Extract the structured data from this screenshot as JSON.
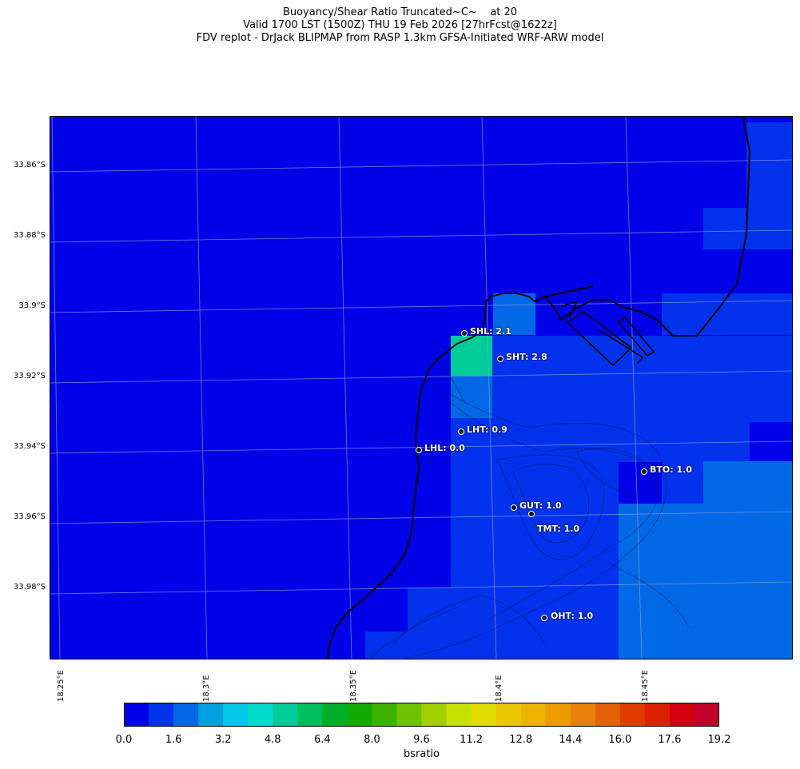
{
  "title": {
    "line1": "Buoyancy/Shear Ratio Truncated~C~    at 20",
    "line2": "Valid 1700 LST (1500Z) THU 19 Feb 2026 [27hrFcst@1622z]",
    "line3": "FDV replot - DrJack BLIPMAP from RASP 1.3km GFSA-Initiated WRF-ARW model"
  },
  "map": {
    "lat_labels": [
      "33.86°S",
      "33.88°S",
      "33.9°S",
      "33.92°S",
      "33.94°S",
      "33.96°S",
      "33.98°S"
    ],
    "lon_labels": [
      "18.25°E",
      "18.3°E",
      "18.35°E",
      "18.4°E",
      "18.45°E"
    ],
    "stations": [
      {
        "id": "SHL",
        "label": "SHL: 2.1"
      },
      {
        "id": "SHT",
        "label": "SHT: 2.8"
      },
      {
        "id": "LHT",
        "label": "LHT: 0.9"
      },
      {
        "id": "LHL",
        "label": "LHL: 0.0"
      },
      {
        "id": "BTO",
        "label": "BTO: 1.0"
      },
      {
        "id": "GUT",
        "label": "GUT: 1.0"
      },
      {
        "id": "TMT",
        "label": "TMT: 1.0"
      },
      {
        "id": "OHT",
        "label": "OHT: 1.0"
      }
    ]
  },
  "colorbar": {
    "label": "bsratio",
    "ticks": [
      "0.0",
      "1.6",
      "3.2",
      "4.8",
      "6.4",
      "8.0",
      "9.6",
      "11.2",
      "12.8",
      "14.4",
      "16.0",
      "17.6",
      "19.2"
    ],
    "colors": [
      "#0202e8",
      "#0232ec",
      "#0168e6",
      "#00a0e0",
      "#00c8e6",
      "#00dccc",
      "#00cc99",
      "#00bf5c",
      "#00ae2a",
      "#12ab06",
      "#3db300",
      "#6ec200",
      "#a0d000",
      "#c8e000",
      "#e2dc00",
      "#e8c800",
      "#ebb400",
      "#eb9c00",
      "#e8800a",
      "#e56006",
      "#e03c00",
      "#de2000",
      "#d20010",
      "#c2002c"
    ]
  }
}
